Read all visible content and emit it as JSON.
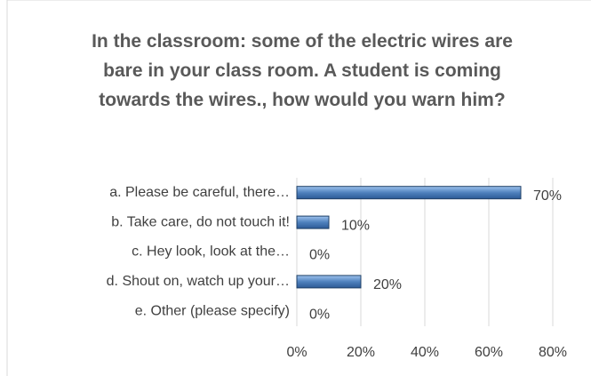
{
  "chart_data": {
    "type": "bar",
    "orientation": "horizontal",
    "title": "In the classroom: some of the electric wires are bare in your class room. A student is coming towards the wires., how would you warn him?",
    "categories": [
      "a. Please be careful, there…",
      "b. Take care, do not touch it!",
      "c. Hey look, look at the…",
      "d. Shout on, watch up your…",
      "e. Other (please specify)"
    ],
    "values": [
      70,
      10,
      0,
      20,
      0
    ],
    "value_labels": [
      "70%",
      "10%",
      "0%",
      "20%",
      "0%"
    ],
    "color": "#4f81bd",
    "xlim": [
      0,
      80
    ],
    "xticks": [
      {
        "value": 0,
        "label": "0%"
      },
      {
        "value": 20,
        "label": "20%"
      },
      {
        "value": 40,
        "label": "40%"
      },
      {
        "value": 60,
        "label": "60%"
      },
      {
        "value": 80,
        "label": "80%"
      }
    ],
    "grid": true
  }
}
